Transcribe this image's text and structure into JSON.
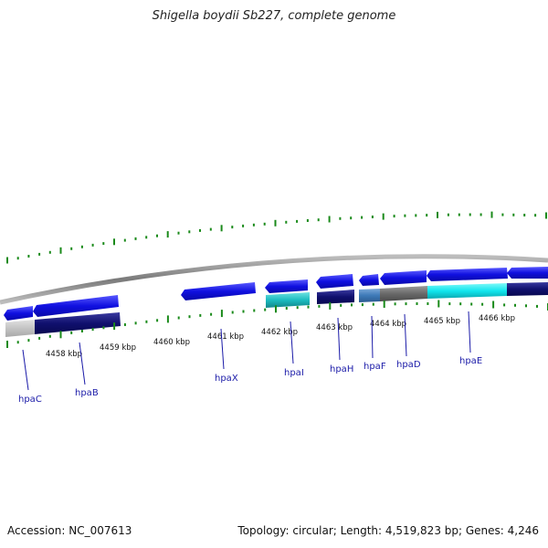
{
  "title": "Shigella boydii Sb227, complete genome",
  "footer": {
    "accession": "Accession: NC_007613",
    "summary": "Topology: circular; Length: 4,519,823 bp; Genes: 4,246"
  },
  "colors": {
    "backbone": "#8a8a8a",
    "tick": "#1a8a1a",
    "gene_arrow": "#1111dd",
    "gene_label": "#1a1aa8"
  },
  "axis_labels": [
    "4458 kbp",
    "4459 kbp",
    "4460 kbp",
    "4461 kbp",
    "4462 kbp",
    "4463 kbp",
    "4464 kbp",
    "4465 kbp",
    "4466 kbp"
  ],
  "genes": [
    "hpaC",
    "hpaB",
    "hpaX",
    "hpaI",
    "hpaH",
    "hpaF",
    "hpaD",
    "hpaE"
  ]
}
